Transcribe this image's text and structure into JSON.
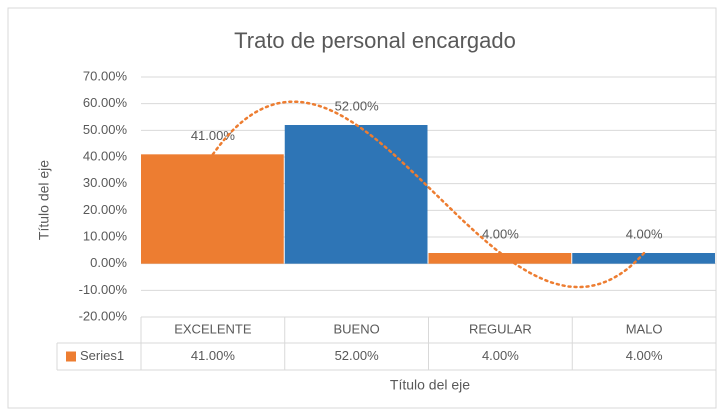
{
  "chart_data": {
    "type": "bar",
    "title": "Trato de personal encargado",
    "categories": [
      "EXCELENTE",
      "BUENO",
      "REGULAR",
      "MALO"
    ],
    "series": [
      {
        "name": "Series1",
        "color": "#ED7D31",
        "point_colors": [
          "#ED7D31",
          "#2E75B6",
          "#ED7D31",
          "#2E75B6"
        ],
        "values": [
          41,
          52,
          4,
          4
        ],
        "value_labels": [
          "41.00%",
          "52.00%",
          "4.00%",
          "4.00%"
        ]
      }
    ],
    "ylim": [
      -20,
      70
    ],
    "yticks": [
      {
        "value": -20,
        "label": "-20.00%"
      },
      {
        "value": -10,
        "label": "-10.00%"
      },
      {
        "value": 0,
        "label": "0.00%"
      },
      {
        "value": 10,
        "label": "10.00%"
      },
      {
        "value": 20,
        "label": "20.00%"
      },
      {
        "value": 30,
        "label": "30.00%"
      },
      {
        "value": 40,
        "label": "40.00%"
      },
      {
        "value": 50,
        "label": "50.00%"
      },
      {
        "value": 60,
        "label": "60.00%"
      },
      {
        "value": 70,
        "label": "70.00%"
      }
    ],
    "xlabel": "Título del eje",
    "ylabel": "Título del eje",
    "grid": true,
    "data_table": true,
    "trendline": {
      "color": "#ED7D31",
      "style": "dotted"
    }
  }
}
